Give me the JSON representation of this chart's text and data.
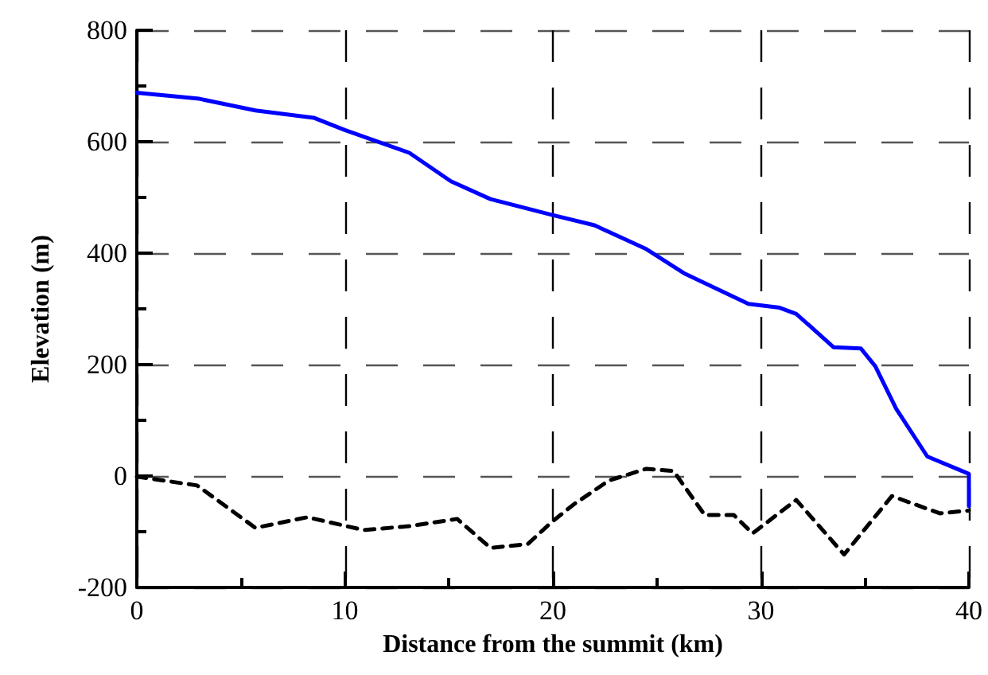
{
  "chart_data": {
    "type": "line",
    "xlabel": "Distance from the summit (km)",
    "ylabel": "Elevation (m)",
    "xlim": [
      0,
      40
    ],
    "ylim": [
      -200,
      800
    ],
    "xticks": [
      0,
      {
        "value": 5,
        "label": null
      },
      10,
      {
        "value": 15,
        "label": null
      },
      20,
      {
        "value": 25,
        "label": null
      },
      30,
      {
        "value": 35,
        "label": null
      },
      40
    ],
    "yticks": [
      -200,
      {
        "value": -100,
        "label": null
      },
      0,
      {
        "value": 100,
        "label": null
      },
      200,
      {
        "value": 300,
        "label": null
      },
      400,
      {
        "value": 500,
        "label": null
      },
      600,
      {
        "value": 700,
        "label": null
      },
      800
    ],
    "grid": true,
    "marker": "none",
    "series": [
      {
        "color": "#0000ff",
        "line_style": "solid",
        "x": [
          0,
          3.0,
          5.7,
          8.5,
          10,
          13.1,
          15.1,
          17.0,
          19.9,
          22.0,
          24.5,
          26.3,
          29.4,
          30.9,
          31.7,
          33.5,
          34.8,
          35.5,
          36.5,
          38.0,
          39.8,
          40,
          40
        ],
        "values": [
          688,
          677,
          656,
          643,
          621,
          580,
          529,
          497,
          469,
          450,
          407,
          364,
          309,
          302,
          291,
          231,
          229,
          197,
          121,
          35,
          7,
          4,
          -54
        ]
      },
      {
        "color": "#000000",
        "line_style": "dashed",
        "x": [
          0,
          2.9,
          5.7,
          8.2,
          10.9,
          13.1,
          15.4,
          17.0,
          18.8,
          19.9,
          21.0,
          22.7,
          24.5,
          25.8,
          27.3,
          28.7,
          29.6,
          31.7,
          34.0,
          36.3,
          38.6,
          40
        ],
        "values": [
          -1,
          -17,
          -93,
          -74,
          -97,
          -90,
          -77,
          -129,
          -122,
          -84,
          -51,
          -8,
          13,
          9,
          -70,
          -70,
          -103,
          -43,
          -141,
          -36,
          -67,
          -62
        ]
      }
    ]
  }
}
